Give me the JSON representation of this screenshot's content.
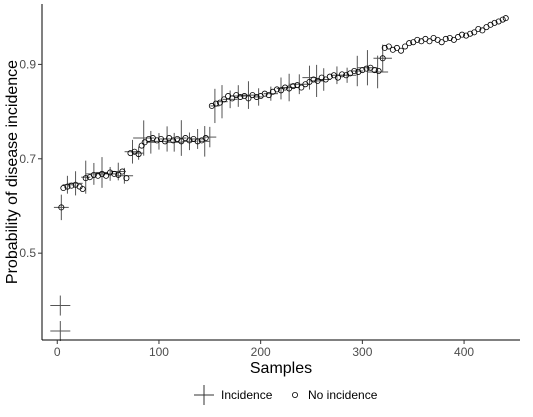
{
  "chart_data": {
    "type": "scatter",
    "title": "",
    "xlabel": "Samples",
    "ylabel": "Probability of disease incidence",
    "xlim": [
      -15,
      455
    ],
    "ylim": [
      0.316,
      1.028
    ],
    "x_ticks": [
      0,
      100,
      200,
      300,
      400
    ],
    "y_ticks": [
      0.5,
      0.7,
      0.9
    ],
    "x_tick_labels": [
      "0",
      "100",
      "200",
      "300",
      "400"
    ],
    "y_tick_labels": [
      "0.5",
      "0.7",
      "0.9"
    ],
    "grid": false,
    "legend": {
      "placement": "bottom",
      "entries": [
        {
          "label": "Incidence",
          "marker": "cross"
        },
        {
          "label": "No incidence",
          "marker": "open-circle"
        }
      ]
    },
    "series": [
      {
        "name": "Incidence",
        "marker": "cross",
        "points": [
          [
            3,
            0.389
          ],
          [
            3,
            0.335
          ],
          [
            4,
            0.597
          ],
          [
            10,
            0.645
          ],
          [
            18,
            0.648
          ],
          [
            28,
            0.661
          ],
          [
            36,
            0.668
          ],
          [
            44,
            0.671
          ],
          [
            52,
            0.668
          ],
          [
            60,
            0.673
          ],
          [
            66,
            0.664
          ],
          [
            74,
            0.715
          ],
          [
            80,
            0.712
          ],
          [
            85,
            0.744
          ],
          [
            92,
            0.735
          ],
          [
            100,
            0.737
          ],
          [
            108,
            0.742
          ],
          [
            115,
            0.735
          ],
          [
            122,
            0.744
          ],
          [
            130,
            0.737
          ],
          [
            138,
            0.742
          ],
          [
            145,
            0.737
          ],
          [
            150,
            0.746
          ],
          [
            155,
            0.812
          ],
          [
            162,
            0.821
          ],
          [
            170,
            0.826
          ],
          [
            178,
            0.833
          ],
          [
            188,
            0.835
          ],
          [
            198,
            0.831
          ],
          [
            210,
            0.838
          ],
          [
            220,
            0.849
          ],
          [
            228,
            0.851
          ],
          [
            238,
            0.858
          ],
          [
            248,
            0.872
          ],
          [
            255,
            0.865
          ],
          [
            262,
            0.868
          ],
          [
            275,
            0.877
          ],
          [
            285,
            0.877
          ],
          [
            295,
            0.886
          ],
          [
            305,
            0.893
          ],
          [
            315,
            0.884
          ],
          [
            320,
            0.913
          ]
        ]
      },
      {
        "name": "No incidence",
        "marker": "open-circle",
        "points": [
          [
            4,
            0.597
          ],
          [
            6,
            0.638
          ],
          [
            10,
            0.641
          ],
          [
            14,
            0.643
          ],
          [
            18,
            0.645
          ],
          [
            22,
            0.641
          ],
          [
            25,
            0.636
          ],
          [
            28,
            0.659
          ],
          [
            32,
            0.661
          ],
          [
            36,
            0.666
          ],
          [
            40,
            0.664
          ],
          [
            44,
            0.668
          ],
          [
            48,
            0.664
          ],
          [
            52,
            0.671
          ],
          [
            56,
            0.668
          ],
          [
            60,
            0.666
          ],
          [
            64,
            0.673
          ],
          [
            68,
            0.659
          ],
          [
            72,
            0.712
          ],
          [
            76,
            0.715
          ],
          [
            80,
            0.71
          ],
          [
            83,
            0.728
          ],
          [
            86,
            0.735
          ],
          [
            90,
            0.742
          ],
          [
            94,
            0.744
          ],
          [
            98,
            0.739
          ],
          [
            102,
            0.742
          ],
          [
            106,
            0.737
          ],
          [
            110,
            0.744
          ],
          [
            114,
            0.739
          ],
          [
            118,
            0.742
          ],
          [
            122,
            0.737
          ],
          [
            126,
            0.744
          ],
          [
            130,
            0.739
          ],
          [
            134,
            0.742
          ],
          [
            138,
            0.737
          ],
          [
            142,
            0.739
          ],
          [
            146,
            0.744
          ],
          [
            152,
            0.812
          ],
          [
            156,
            0.817
          ],
          [
            160,
            0.819
          ],
          [
            164,
            0.826
          ],
          [
            168,
            0.833
          ],
          [
            172,
            0.828
          ],
          [
            176,
            0.835
          ],
          [
            180,
            0.831
          ],
          [
            184,
            0.833
          ],
          [
            188,
            0.828
          ],
          [
            192,
            0.835
          ],
          [
            196,
            0.831
          ],
          [
            200,
            0.833
          ],
          [
            204,
            0.838
          ],
          [
            208,
            0.835
          ],
          [
            212,
            0.842
          ],
          [
            216,
            0.847
          ],
          [
            220,
            0.845
          ],
          [
            224,
            0.851
          ],
          [
            228,
            0.849
          ],
          [
            232,
            0.854
          ],
          [
            236,
            0.856
          ],
          [
            240,
            0.851
          ],
          [
            244,
            0.858
          ],
          [
            248,
            0.863
          ],
          [
            252,
            0.868
          ],
          [
            256,
            0.865
          ],
          [
            260,
            0.872
          ],
          [
            264,
            0.868
          ],
          [
            268,
            0.874
          ],
          [
            272,
            0.877
          ],
          [
            276,
            0.872
          ],
          [
            280,
            0.879
          ],
          [
            284,
            0.877
          ],
          [
            288,
            0.881
          ],
          [
            292,
            0.886
          ],
          [
            296,
            0.884
          ],
          [
            300,
            0.888
          ],
          [
            304,
            0.891
          ],
          [
            308,
            0.893
          ],
          [
            312,
            0.888
          ],
          [
            316,
            0.886
          ],
          [
            320,
            0.913
          ],
          [
            322,
            0.935
          ],
          [
            326,
            0.938
          ],
          [
            330,
            0.931
          ],
          [
            334,
            0.935
          ],
          [
            338,
            0.929
          ],
          [
            342,
            0.938
          ],
          [
            346,
            0.945
          ],
          [
            350,
            0.947
          ],
          [
            354,
            0.952
          ],
          [
            358,
            0.949
          ],
          [
            362,
            0.954
          ],
          [
            366,
            0.949
          ],
          [
            370,
            0.956
          ],
          [
            374,
            0.952
          ],
          [
            378,
            0.947
          ],
          [
            382,
            0.954
          ],
          [
            386,
            0.956
          ],
          [
            390,
            0.952
          ],
          [
            394,
            0.958
          ],
          [
            398,
            0.963
          ],
          [
            402,
            0.961
          ],
          [
            406,
            0.965
          ],
          [
            410,
            0.968
          ],
          [
            414,
            0.975
          ],
          [
            418,
            0.972
          ],
          [
            422,
            0.979
          ],
          [
            426,
            0.984
          ],
          [
            430,
            0.988
          ],
          [
            434,
            0.991
          ],
          [
            438,
            0.995
          ],
          [
            441,
            0.998
          ]
        ]
      }
    ]
  }
}
